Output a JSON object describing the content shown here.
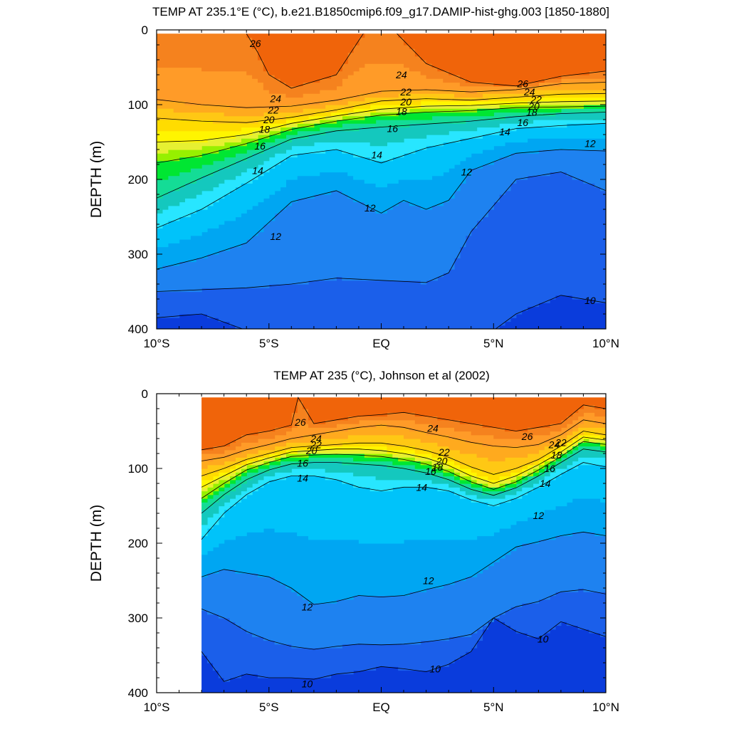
{
  "chart_data": [
    {
      "type": "contour",
      "title": "TEMP AT 235.1°E (°C), b.e21.B1850cmip6.f09_g17.DAMIP-hist-ghg.003 [1850-1880]",
      "ylabel": "DEPTH (m)",
      "xlabel": "",
      "xlim": [
        -10,
        10
      ],
      "ylim": [
        400,
        0
      ],
      "x_ticks": [
        -10,
        -5,
        0,
        5,
        10
      ],
      "x_tick_labels": [
        "10°S",
        "5°S",
        "EQ",
        "5°N",
        "10°N"
      ],
      "y_ticks": [
        0,
        100,
        200,
        300,
        400
      ],
      "y_tick_labels": [
        "0",
        "100",
        "200",
        "300",
        "400"
      ],
      "data_xlim": [
        -10,
        10
      ],
      "contour_levels": [
        9,
        10,
        11,
        12,
        13,
        14,
        15,
        16,
        17,
        18,
        19,
        20,
        21,
        22,
        23,
        24,
        25,
        26,
        27,
        28
      ],
      "isotherms": [
        {
          "level": 26,
          "x": [
            -6,
            -5.5,
            -5,
            -4,
            -2,
            -0.8
          ],
          "depth": [
            5,
            30,
            60,
            78,
            60,
            5
          ]
        },
        {
          "level": 26,
          "x": [
            0.7,
            2,
            4,
            6,
            8,
            10
          ],
          "depth": [
            5,
            45,
            70,
            75,
            62,
            55
          ]
        },
        {
          "level": 24,
          "x": [
            -10,
            -8,
            -6,
            -4,
            -2,
            0,
            2,
            4,
            6,
            8,
            10
          ],
          "depth": [
            93,
            100,
            104,
            102,
            94,
            82,
            80,
            83,
            80,
            72,
            70
          ]
        },
        {
          "level": 22,
          "x": [
            -10,
            -8,
            -6,
            -4,
            -2,
            0,
            2,
            4,
            6,
            8,
            10
          ],
          "depth": [
            118,
            122,
            124,
            117,
            107,
            95,
            92,
            94,
            90,
            86,
            85
          ]
        },
        {
          "level": 20,
          "x": [
            -10,
            -8,
            -6,
            -4,
            -2,
            0,
            2,
            4,
            6,
            8,
            10
          ],
          "depth": [
            150,
            148,
            140,
            125,
            115,
            106,
            102,
            101,
            98,
            96,
            95
          ]
        },
        {
          "level": 18,
          "x": [
            -10,
            -8,
            -6,
            -4,
            -2,
            0,
            2,
            4,
            6,
            8,
            10
          ],
          "depth": [
            178,
            168,
            152,
            133,
            122,
            114,
            110,
            108,
            104,
            103,
            102
          ]
        },
        {
          "level": 16,
          "x": [
            -10,
            -8,
            -6,
            -4,
            -2,
            0,
            2,
            4,
            6,
            8,
            10
          ],
          "depth": [
            225,
            198,
            172,
            146,
            135,
            130,
            126,
            122,
            116,
            112,
            110
          ]
        },
        {
          "level": 14,
          "x": [
            -10,
            -8,
            -6,
            -4,
            -2,
            0,
            2,
            4,
            6,
            8,
            10
          ],
          "depth": [
            265,
            240,
            205,
            168,
            160,
            178,
            158,
            145,
            132,
            128,
            125
          ]
        },
        {
          "level": 12,
          "x": [
            -10,
            -8,
            -6,
            -4,
            -2,
            0,
            1,
            2,
            3,
            4,
            6,
            8,
            10
          ],
          "depth": [
            320,
            305,
            285,
            230,
            215,
            245,
            228,
            240,
            228,
            188,
            165,
            160,
            162
          ]
        },
        {
          "level": 11,
          "x": [
            -10,
            -6,
            -4,
            -2,
            0,
            2,
            3,
            4,
            6,
            8,
            10
          ],
          "depth": [
            350,
            345,
            340,
            332,
            335,
            338,
            325,
            270,
            200,
            190,
            215
          ]
        },
        {
          "level": 10,
          "x": [
            -10,
            -8,
            -6,
            -4,
            -2,
            0,
            3,
            5,
            6,
            8,
            10
          ],
          "depth": [
            385,
            380,
            402,
            402,
            402,
            402,
            402,
            402,
            380,
            355,
            365
          ]
        }
      ],
      "contour_labels": [
        {
          "text": "26",
          "x": -5.6,
          "depth": 18
        },
        {
          "text": "24",
          "x": 0.9,
          "depth": 60
        },
        {
          "text": "26",
          "x": 6.3,
          "depth": 72
        },
        {
          "text": "22",
          "x": 1.1,
          "depth": 83
        },
        {
          "text": "24",
          "x": 6.6,
          "depth": 83
        },
        {
          "text": "20",
          "x": 1.1,
          "depth": 96
        },
        {
          "text": "22",
          "x": 6.9,
          "depth": 93
        },
        {
          "text": "24",
          "x": -4.7,
          "depth": 92
        },
        {
          "text": "22",
          "x": -4.8,
          "depth": 107
        },
        {
          "text": "20",
          "x": 6.8,
          "depth": 102
        },
        {
          "text": "20",
          "x": -5,
          "depth": 120
        },
        {
          "text": "18",
          "x": 0.9,
          "depth": 109
        },
        {
          "text": "18",
          "x": 6.7,
          "depth": 110
        },
        {
          "text": "18",
          "x": -5.2,
          "depth": 133
        },
        {
          "text": "16",
          "x": 0.5,
          "depth": 132
        },
        {
          "text": "16",
          "x": 6.3,
          "depth": 124
        },
        {
          "text": "16",
          "x": -5.4,
          "depth": 155
        },
        {
          "text": "14",
          "x": 5.5,
          "depth": 136
        },
        {
          "text": "12",
          "x": 9.3,
          "depth": 152
        },
        {
          "text": "14",
          "x": -0.2,
          "depth": 167
        },
        {
          "text": "14",
          "x": -5.5,
          "depth": 188
        },
        {
          "text": "12",
          "x": 3.8,
          "depth": 190
        },
        {
          "text": "12",
          "x": -0.5,
          "depth": 238
        },
        {
          "text": "12",
          "x": -4.7,
          "depth": 276
        },
        {
          "text": "10",
          "x": 9.3,
          "depth": 362
        }
      ]
    },
    {
      "type": "contour",
      "title": "TEMP AT 235 (°C), Johnson et al (2002)",
      "ylabel": "DEPTH (m)",
      "xlabel": "",
      "xlim": [
        -10,
        10
      ],
      "ylim": [
        400,
        0
      ],
      "x_ticks": [
        -10,
        -5,
        0,
        5,
        10
      ],
      "x_tick_labels": [
        "10°S",
        "5°S",
        "EQ",
        "5°N",
        "10°N"
      ],
      "y_ticks": [
        0,
        100,
        200,
        300,
        400
      ],
      "y_tick_labels": [
        "0",
        "100",
        "200",
        "300",
        "400"
      ],
      "data_xlim": [
        -8,
        10
      ],
      "contour_levels": [
        9,
        10,
        11,
        12,
        13,
        14,
        15,
        16,
        17,
        18,
        19,
        20,
        21,
        22,
        23,
        24,
        25,
        26,
        27,
        28
      ],
      "isotherms": [
        {
          "level": 26,
          "x": [
            -8,
            -7,
            -6,
            -5,
            -4,
            -3.7,
            -3,
            -2,
            -1,
            0,
            1,
            2,
            4,
            6,
            7,
            8,
            9,
            10
          ],
          "depth": [
            75,
            70,
            55,
            50,
            42,
            5,
            40,
            35,
            30,
            28,
            25,
            30,
            40,
            50,
            45,
            40,
            15,
            20
          ]
        },
        {
          "level": 24,
          "x": [
            -8,
            -7,
            -6,
            -5,
            -4,
            -3,
            -2,
            -1,
            0,
            1,
            2,
            3,
            4,
            5,
            6,
            7,
            8,
            9,
            10
          ],
          "depth": [
            90,
            85,
            75,
            68,
            60,
            55,
            50,
            45,
            42,
            45,
            52,
            58,
            65,
            70,
            72,
            68,
            55,
            35,
            40
          ]
        },
        {
          "level": 22,
          "x": [
            -8,
            -7,
            -6,
            -5,
            -4,
            -3,
            -2,
            -1,
            0,
            1,
            2,
            3,
            4,
            5,
            6,
            7,
            8,
            9,
            10
          ],
          "depth": [
            110,
            100,
            88,
            80,
            72,
            70,
            68,
            66,
            66,
            70,
            76,
            85,
            98,
            108,
            100,
            88,
            70,
            50,
            55
          ]
        },
        {
          "level": 20,
          "x": [
            -8,
            -7,
            -6,
            -5,
            -4,
            -3,
            -2,
            -1,
            0,
            1,
            2,
            3,
            4,
            5,
            6,
            7,
            8,
            9,
            10
          ],
          "depth": [
            125,
            110,
            95,
            86,
            78,
            76,
            74,
            74,
            76,
            80,
            86,
            96,
            110,
            120,
            110,
            95,
            78,
            58,
            62
          ]
        },
        {
          "level": 18,
          "x": [
            -8,
            -7,
            -6,
            -5,
            -4,
            -3,
            -2,
            -1,
            0,
            1,
            2,
            3,
            4,
            5,
            6,
            7,
            8,
            9,
            10
          ],
          "depth": [
            140,
            120,
            102,
            92,
            84,
            82,
            81,
            82,
            84,
            88,
            94,
            104,
            118,
            128,
            118,
            102,
            84,
            64,
            68
          ]
        },
        {
          "level": 16,
          "x": [
            -8,
            -7,
            -6,
            -5,
            -4,
            -3,
            -2,
            -1,
            0,
            1,
            2,
            3,
            4,
            5,
            6,
            7,
            8,
            9,
            10
          ],
          "depth": [
            160,
            135,
            115,
            102,
            94,
            92,
            92,
            94,
            96,
            100,
            106,
            115,
            128,
            136,
            126,
            110,
            92,
            74,
            78
          ]
        },
        {
          "level": 14,
          "x": [
            -8,
            -7,
            -6,
            -5,
            -4,
            -3,
            -2,
            -1,
            0,
            1,
            2,
            3,
            4,
            5,
            6,
            7,
            8,
            9,
            10
          ],
          "depth": [
            195,
            160,
            135,
            118,
            110,
            110,
            115,
            125,
            130,
            125,
            125,
            130,
            142,
            150,
            140,
            125,
            108,
            92,
            98
          ]
        },
        {
          "level": 12,
          "x": [
            -8,
            -7,
            -6,
            -5,
            -4,
            -3,
            -2,
            -1,
            0,
            1,
            2,
            3,
            4,
            5,
            6,
            7,
            8,
            9,
            10
          ],
          "depth": [
            245,
            235,
            240,
            245,
            260,
            282,
            278,
            270,
            272,
            270,
            262,
            255,
            245,
            225,
            205,
            198,
            190,
            185,
            190
          ]
        },
        {
          "level": 11,
          "x": [
            -8,
            -7,
            -6,
            -5,
            -4,
            -3,
            -2,
            -1,
            0,
            1,
            2,
            3,
            4,
            5,
            6,
            7,
            8,
            9,
            10
          ],
          "depth": [
            288,
            300,
            318,
            330,
            338,
            342,
            338,
            335,
            336,
            335,
            332,
            328,
            322,
            300,
            285,
            278,
            265,
            262,
            268
          ]
        },
        {
          "level": 10,
          "x": [
            -8,
            -7,
            -6,
            -5,
            -4,
            -3,
            -2,
            -1,
            0,
            1,
            2,
            3,
            4,
            5,
            6,
            7,
            8,
            9,
            10
          ],
          "depth": [
            345,
            385,
            375,
            380,
            380,
            382,
            375,
            372,
            365,
            368,
            372,
            362,
            345,
            300,
            318,
            328,
            305,
            315,
            325
          ]
        }
      ],
      "contour_labels": [
        {
          "text": "26",
          "x": -3.6,
          "depth": 38
        },
        {
          "text": "24",
          "x": -2.9,
          "depth": 60
        },
        {
          "text": "22",
          "x": -2.9,
          "depth": 68
        },
        {
          "text": "20",
          "x": -3.1,
          "depth": 76
        },
        {
          "text": "16",
          "x": -3.5,
          "depth": 93
        },
        {
          "text": "14",
          "x": -3.5,
          "depth": 113
        },
        {
          "text": "24",
          "x": 2.3,
          "depth": 46
        },
        {
          "text": "26",
          "x": 6.5,
          "depth": 57
        },
        {
          "text": "22",
          "x": 2.8,
          "depth": 78
        },
        {
          "text": "20",
          "x": 2.7,
          "depth": 90
        },
        {
          "text": "18",
          "x": 2.5,
          "depth": 98
        },
        {
          "text": "16",
          "x": 2.2,
          "depth": 104
        },
        {
          "text": "14",
          "x": 1.8,
          "depth": 125
        },
        {
          "text": "24",
          "x": 7.7,
          "depth": 68
        },
        {
          "text": "22",
          "x": 8,
          "depth": 65
        },
        {
          "text": "18",
          "x": 7.8,
          "depth": 82
        },
        {
          "text": "16",
          "x": 7.5,
          "depth": 100
        },
        {
          "text": "14",
          "x": 7.3,
          "depth": 120
        },
        {
          "text": "12",
          "x": 7,
          "depth": 163
        },
        {
          "text": "12",
          "x": 2.1,
          "depth": 250
        },
        {
          "text": "12",
          "x": -3.3,
          "depth": 285
        },
        {
          "text": "10",
          "x": 7.2,
          "depth": 328
        },
        {
          "text": "10",
          "x": 2.4,
          "depth": 368
        },
        {
          "text": "10",
          "x": -3.3,
          "depth": 388
        }
      ]
    }
  ],
  "colors": {
    "levels_fill": [
      "#0A3CDC",
      "#1B5FEA",
      "#1E82F0",
      "#00A6F2",
      "#00C3FA",
      "#28E6FF",
      "#14C8BE",
      "#14DC96",
      "#00E632",
      "#96F000",
      "#E6F032",
      "#FFF500",
      "#FFDC00",
      "#FFC814",
      "#FFAA1E",
      "#FF9B28",
      "#F5821E",
      "#F0640A",
      "#F03200",
      "#FF0000"
    ],
    "contour_line": "#000000"
  }
}
